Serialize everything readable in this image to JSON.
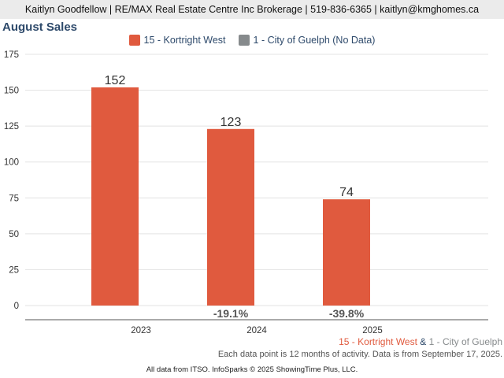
{
  "header": {
    "contact": "Kaitlyn Goodfellow | RE/MAX Real Estate Centre Inc Brokerage | 519-836-6365 | kaitlyn@kmghomes.ca"
  },
  "chart_title": "August Sales",
  "legend": [
    {
      "label": "15 - Kortright West",
      "color": "#e05a3e"
    },
    {
      "label": "1 - City of Guelph (No Data)",
      "color": "#868a8c"
    }
  ],
  "chart_data": {
    "type": "bar",
    "title": "August Sales",
    "categories": [
      "2023",
      "2024",
      "2025"
    ],
    "series": [
      {
        "name": "15 - Kortright West",
        "values": [
          152,
          123,
          74
        ],
        "color": "#e05a3e"
      }
    ],
    "change_labels": [
      "",
      "-19.1%",
      "-39.8%"
    ],
    "ylim": [
      0,
      175
    ],
    "yticks": [
      0,
      25,
      50,
      75,
      100,
      125,
      150,
      175
    ],
    "grid": true,
    "legend_position": "top"
  },
  "footer": {
    "series_a": "15 - Kortright West",
    "separator": " & ",
    "series_b": "1 - City of Guelph",
    "series_a_color": "#e05a3e",
    "separator_color": "#2e4a6b",
    "series_b_color": "#868a8c",
    "note": "Each data point is 12 months of activity. Data is from September 17, 2025.",
    "credit": "All data from ITSO. InfoSparks © 2025 ShowingTime Plus, LLC."
  }
}
